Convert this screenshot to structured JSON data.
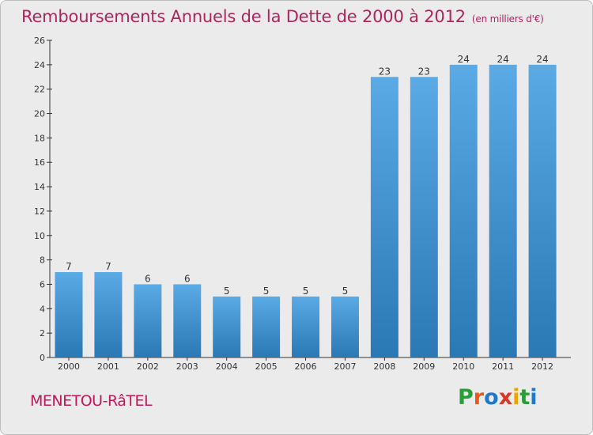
{
  "header": {
    "title": "Remboursements Annuels de la Dette de 2000 à 2012",
    "subtitle": "(en milliers d'€)"
  },
  "footer": {
    "commune": "MENETOU-RâTEL",
    "logo": "Proxiti"
  },
  "colors": {
    "title": "#b0245e",
    "bar_light": "#5aaae6",
    "bar_dark": "#2a78b4",
    "background": "#ebebeb"
  },
  "chart_data": {
    "type": "bar",
    "categories": [
      "2000",
      "2001",
      "2002",
      "2003",
      "2004",
      "2005",
      "2006",
      "2007",
      "2008",
      "2009",
      "2010",
      "2011",
      "2012"
    ],
    "values": [
      7,
      7,
      6,
      6,
      5,
      5,
      5,
      5,
      23,
      23,
      24,
      24,
      24
    ],
    "title": "Remboursements Annuels de la Dette de 2000 à 2012",
    "subtitle": "(en milliers d'€)",
    "ylim": [
      0,
      26
    ],
    "yticks": [
      0,
      2,
      4,
      6,
      8,
      10,
      12,
      14,
      16,
      18,
      20,
      22,
      24,
      26
    ],
    "grid": false,
    "data_labels": true
  }
}
